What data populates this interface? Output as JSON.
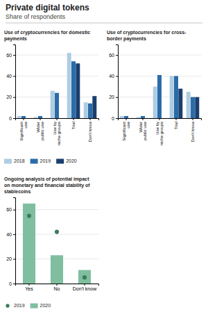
{
  "title": "Private digital tokens",
  "subtitle": "Share of respondents",
  "chart_data": [
    {
      "type": "bar",
      "title": "Use of cryptocurrencies for domestic\npayments",
      "categories": [
        "Significant\nuse",
        "Wider\npublic use",
        "Use by\nniche groups",
        "Trial",
        "Don't know"
      ],
      "series": [
        {
          "name": "2018",
          "color": "#aecde3",
          "values": [
            2,
            1,
            26,
            62,
            15
          ]
        },
        {
          "name": "2019",
          "color": "#2b6ca8",
          "values": [
            2,
            2,
            24,
            54,
            14
          ]
        },
        {
          "name": "2020",
          "color": "#1a3f6f",
          "values": [
            0,
            0,
            0,
            52,
            21
          ]
        }
      ],
      "ylim": [
        0,
        70
      ],
      "yticks": [
        0,
        20,
        40,
        60
      ],
      "grid": true,
      "legend": "bottom"
    },
    {
      "type": "bar",
      "title": "Use of cryptocurrencies for cross-\nborder payments",
      "categories": [
        "Significant\nuse",
        "Wider\npublic use",
        "Use by\nniche groups",
        "Trial",
        "Don't know"
      ],
      "series": [
        {
          "name": "2018",
          "color": "#aecde3",
          "values": [
            2,
            1,
            30,
            40,
            25
          ]
        },
        {
          "name": "2019",
          "color": "#2b6ca8",
          "values": [
            2,
            2,
            41,
            40,
            20
          ]
        },
        {
          "name": "2020",
          "color": "#1a3f6f",
          "values": [
            0,
            0,
            0,
            28,
            20
          ]
        }
      ],
      "ylim": [
        0,
        70
      ],
      "yticks": [
        0,
        20,
        40,
        60
      ],
      "grid": true
    },
    {
      "type": "bar",
      "title": "Ongoing analysis of potential impact\non monetary and financial stability of\nstablecoins",
      "categories": [
        "Yes",
        "No",
        "Don't know"
      ],
      "series": [
        {
          "name": "2019",
          "type": "scatter",
          "marker": "circle",
          "color": "#3a7d5a",
          "values": [
            55,
            42,
            5
          ]
        },
        {
          "name": "2020",
          "type": "bar",
          "color": "#7fbfa0",
          "values": [
            65,
            23,
            11
          ]
        }
      ],
      "ylim": [
        0,
        70
      ],
      "yticks": [
        0,
        20,
        40,
        60
      ],
      "grid": true,
      "legend": "bottom"
    }
  ]
}
